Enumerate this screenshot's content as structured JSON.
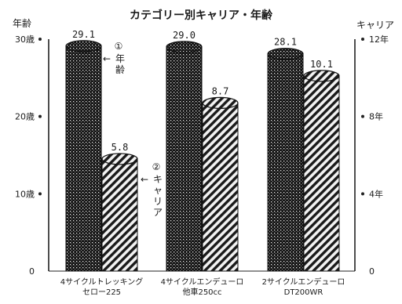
{
  "chart_data": {
    "type": "bar",
    "title": "カテゴリー別キャリア・年齢",
    "categories": [
      [
        "4サイクルトレッキング",
        "セロー225"
      ],
      [
        "4サイクルエンデューロ",
        "他車250cc"
      ],
      [
        "2サイクルエンデューロ",
        "DT200WR"
      ]
    ],
    "series": [
      {
        "name": "年齢",
        "axis": "left",
        "pattern": "dots",
        "values": [
          29.1,
          29.0,
          28.1
        ],
        "labels": [
          "29.1",
          "29.0",
          "28.1"
        ]
      },
      {
        "name": "キャリア",
        "axis": "right",
        "pattern": "hatch",
        "values": [
          5.8,
          8.7,
          10.1
        ],
        "labels": [
          "5.8",
          "8.7",
          "10.1"
        ]
      }
    ],
    "left_axis": {
      "label": "年齢",
      "ylim": [
        0,
        30
      ],
      "ticks": [
        0,
        10,
        20,
        30
      ],
      "tick_labels": [
        "0",
        "10歳",
        "20歳",
        "30歳"
      ]
    },
    "right_axis": {
      "label": "キャリア",
      "ylim": [
        0,
        12
      ],
      "ticks": [
        0,
        4,
        8,
        12
      ],
      "tick_labels": [
        "0",
        "4年",
        "8年",
        "12年"
      ]
    },
    "annotations": [
      {
        "num": "①",
        "text": "←年齢",
        "series": 0
      },
      {
        "num": "②",
        "text": "←キャリア",
        "series": 1
      }
    ],
    "grid": false,
    "legend": "none"
  }
}
